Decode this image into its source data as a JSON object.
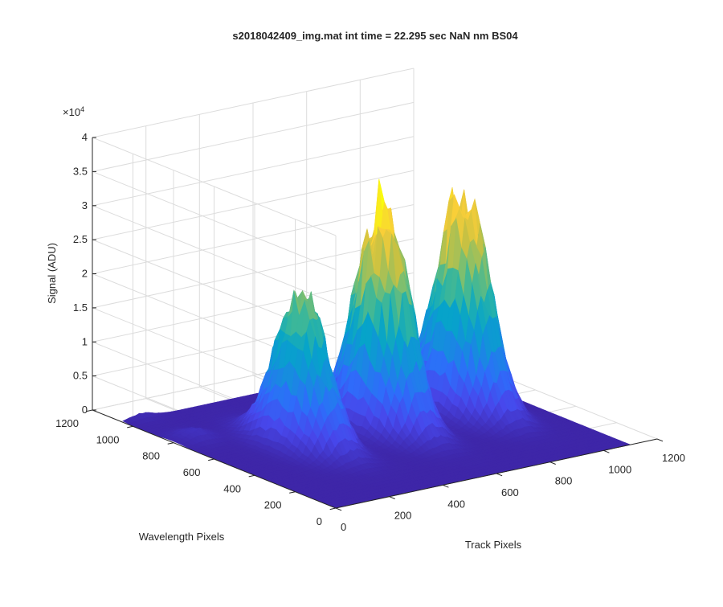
{
  "chart_data": {
    "type": "surface",
    "title": "s2018042409_img.mat int time = 22.295 sec  NaN nm BS04",
    "xlabel": "Track Pixels",
    "ylabel": "Wavelength Pixels",
    "zlabel": "Signal (ADU)",
    "z_exponent_label": "×10",
    "z_exponent_power": "4",
    "xlim": [
      0,
      1200
    ],
    "ylim": [
      0,
      1200
    ],
    "zlim": [
      0,
      40000
    ],
    "x_ticks": [
      "0",
      "200",
      "400",
      "600",
      "800",
      "1000",
      "1200"
    ],
    "y_ticks": [
      "0",
      "200",
      "400",
      "600",
      "800",
      "1000",
      "1200"
    ],
    "z_ticks": [
      "0",
      "0.5",
      "1",
      "1.5",
      "2",
      "2.5",
      "3",
      "3.5",
      "4"
    ],
    "colormap": "parula",
    "grid": true,
    "peaks": [
      {
        "track_center": 300,
        "track_width": 110,
        "wavelength_center": 560,
        "wavelength_width": 280,
        "max_signal": 22000
      },
      {
        "track_center": 600,
        "track_width": 110,
        "wavelength_center": 560,
        "wavelength_width": 280,
        "max_signal": 33000
      },
      {
        "track_center": 900,
        "track_width": 110,
        "wavelength_center": 560,
        "wavelength_width": 280,
        "max_signal": 31500
      }
    ],
    "minor_bumps": [
      {
        "track_center": 80,
        "wavelength_center": 800,
        "max_signal": 1300
      },
      {
        "track_center": 70,
        "wavelength_center": 1100,
        "max_signal": 1200
      }
    ],
    "track_extent": [
      0,
      1100
    ],
    "wavelength_extent": [
      0,
      1050
    ]
  }
}
